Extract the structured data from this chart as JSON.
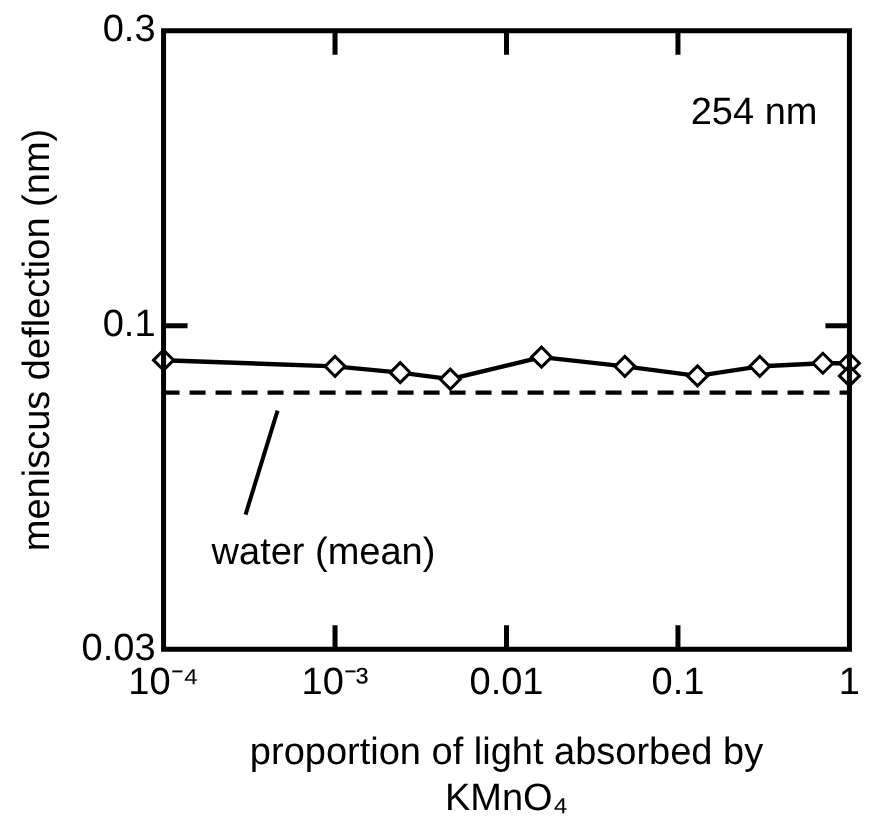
{
  "chart_data": {
    "type": "line",
    "xlabel": "proportion of light absorbed by KMnO₄",
    "ylabel": "meniscus deflection (nm)",
    "annotations": [
      "254 nm"
    ],
    "log": "xy",
    "grid": false,
    "legend": false,
    "marker": "diamond",
    "line_style": "solid",
    "xlim": [
      0.0001,
      1
    ],
    "ylim": [
      0.03,
      0.3
    ],
    "xticks": [
      {
        "value": 0.0001,
        "label": "10⁻⁴"
      },
      {
        "value": 0.001,
        "label": "10⁻³"
      },
      0.01,
      0.1,
      1
    ],
    "yticks": [
      0.03,
      0.1,
      0.3
    ],
    "series": [
      {
        "color": "#000000",
        "x": [
          0.0001,
          0.001,
          0.0024,
          0.0047,
          0.016,
          0.049,
          0.13,
          0.3,
          0.7,
          1,
          1
        ],
        "values": [
          0.088,
          0.086,
          0.084,
          0.082,
          0.089,
          0.086,
          0.083,
          0.086,
          0.087,
          0.087,
          0.083
        ]
      }
    ],
    "ref_lines": [
      {
        "axis": "y",
        "value": 0.078,
        "label": "water (mean)",
        "line_style": "dashed",
        "color": "#000000"
      }
    ]
  }
}
